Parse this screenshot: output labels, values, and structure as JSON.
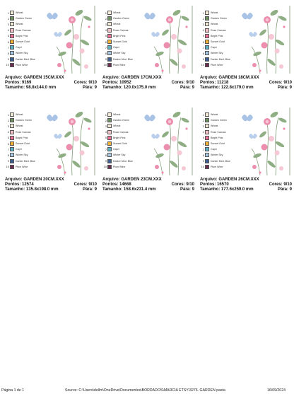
{
  "legend": [
    {
      "num": "1",
      "name": "Wheat",
      "color": "#f0ead6"
    },
    {
      "num": "2",
      "name": "Garden Green",
      "color": "#6e8f5f"
    },
    {
      "num": "3",
      "name": "Wheat",
      "color": "#f0ead6"
    },
    {
      "num": "4",
      "name": "Rose Canvas",
      "color": "#f3c0c8"
    },
    {
      "num": "5",
      "name": "Bright Pink",
      "color": "#ec6f96"
    },
    {
      "num": "6",
      "name": "Sunset Gold",
      "color": "#f2b233"
    },
    {
      "num": "7",
      "name": "Capri",
      "color": "#5bb0c8"
    },
    {
      "num": "8",
      "name": "Winter Sky",
      "color": "#a9c9e4"
    },
    {
      "num": "9",
      "name": "Darker Med. Blue",
      "color": "#3c5f8f"
    },
    {
      "num": "10",
      "name": "Plum Wine",
      "color": "#6b2d4f"
    }
  ],
  "colors": {
    "leaf": "#8fae84",
    "stem": "#7d9a74",
    "pink": "#ec8fae",
    "pinkLight": "#f6c7d4",
    "blue": "#a9c3e6"
  },
  "cards": [
    {
      "title": "Arquivo: GARDEN 15CM.XXX",
      "pontos": "Pontos: 9169",
      "cores": "Cores: 9/10",
      "tamanho": "Tamanho: 98.8x144.0 mm",
      "para": "Pára: 9"
    },
    {
      "title": "Arquivo: GARDEN 17CM.XXX",
      "pontos": "Pontos: 10952",
      "cores": "Cores: 9/10",
      "tamanho": "Tamanho: 120.0x175.0 mm",
      "para": "Pára: 9"
    },
    {
      "title": "Arquivo: GARDEN 18CM.XXX",
      "pontos": "Pontos: 11218",
      "cores": "Cores: 9/10",
      "tamanho": "Tamanho: 122.8x179.0 mm",
      "para": "Pára: 9"
    },
    {
      "title": "Arquivo: GARDEN 20CM.XXX",
      "pontos": "Pontos: 12574",
      "cores": "Cores: 9/10",
      "tamanho": "Tamanho: 135.8x198.0 mm",
      "para": "Pára: 9"
    },
    {
      "title": "Arquivo: GARDEN 23CM.XXX",
      "pontos": "Pontos: 14668",
      "cores": "Cores: 9/10",
      "tamanho": "Tamanho: 158.6x231.4 mm",
      "para": "Pára: 9"
    },
    {
      "title": "Arquivo: GARDEN 26CM.XXX",
      "pontos": "Pontos: 16570",
      "cores": "Cores: 9/10",
      "tamanho": "Tamanho: 177.6x259.0 mm",
      "para": "Pára: 9"
    }
  ],
  "footer": {
    "page": "Página 1 de 1",
    "source": "Source:  C:\\Users\\dellm\\OneDrive\\Documentos\\BORDADOS\\MARCIA ETSY\\3276. GARDEN pasta",
    "date": "16/09/2024"
  }
}
